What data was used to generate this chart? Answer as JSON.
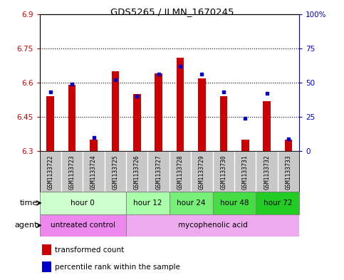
{
  "title": "GDS5265 / ILMN_1670245",
  "samples": [
    "GSM1133722",
    "GSM1133723",
    "GSM1133724",
    "GSM1133725",
    "GSM1133726",
    "GSM1133727",
    "GSM1133728",
    "GSM1133729",
    "GSM1133730",
    "GSM1133731",
    "GSM1133732",
    "GSM1133733"
  ],
  "red_values": [
    6.54,
    6.59,
    6.35,
    6.65,
    6.55,
    6.64,
    6.71,
    6.62,
    6.54,
    6.35,
    6.52,
    6.35
  ],
  "blue_values_pct": [
    43,
    49,
    10,
    52,
    40,
    56,
    62,
    56,
    43,
    24,
    42,
    9
  ],
  "ymin": 6.3,
  "ymax": 6.9,
  "yticks": [
    6.3,
    6.45,
    6.6,
    6.75,
    6.9
  ],
  "ytick_labels": [
    "6.3",
    "6.45",
    "6.6",
    "6.75",
    "6.9"
  ],
  "y2min": 0,
  "y2max": 100,
  "y2ticks": [
    0,
    25,
    50,
    75,
    100
  ],
  "y2tick_labels": [
    "0",
    "25",
    "50",
    "75",
    "100%"
  ],
  "dotted_lines": [
    6.45,
    6.6,
    6.75
  ],
  "time_groups": [
    {
      "label": "hour 0",
      "start": 0,
      "end": 3,
      "color": "#ccffcc"
    },
    {
      "label": "hour 12",
      "start": 4,
      "end": 5,
      "color": "#aaffaa"
    },
    {
      "label": "hour 24",
      "start": 6,
      "end": 7,
      "color": "#77ee77"
    },
    {
      "label": "hour 48",
      "start": 8,
      "end": 9,
      "color": "#44dd44"
    },
    {
      "label": "hour 72",
      "start": 10,
      "end": 11,
      "color": "#22cc22"
    }
  ],
  "agent_groups": [
    {
      "label": "untreated control",
      "start": 0,
      "end": 3,
      "color": "#ee88ee"
    },
    {
      "label": "mycophenolic acid",
      "start": 4,
      "end": 11,
      "color": "#eeaaee"
    }
  ],
  "bar_color": "#cc0000",
  "dot_color": "#0000cc",
  "baseline": 6.3,
  "bar_width": 0.35,
  "legend_red": "transformed count",
  "legend_blue": "percentile rank within the sample",
  "sample_bg": "#c8c8c8",
  "border_color": "#000000"
}
